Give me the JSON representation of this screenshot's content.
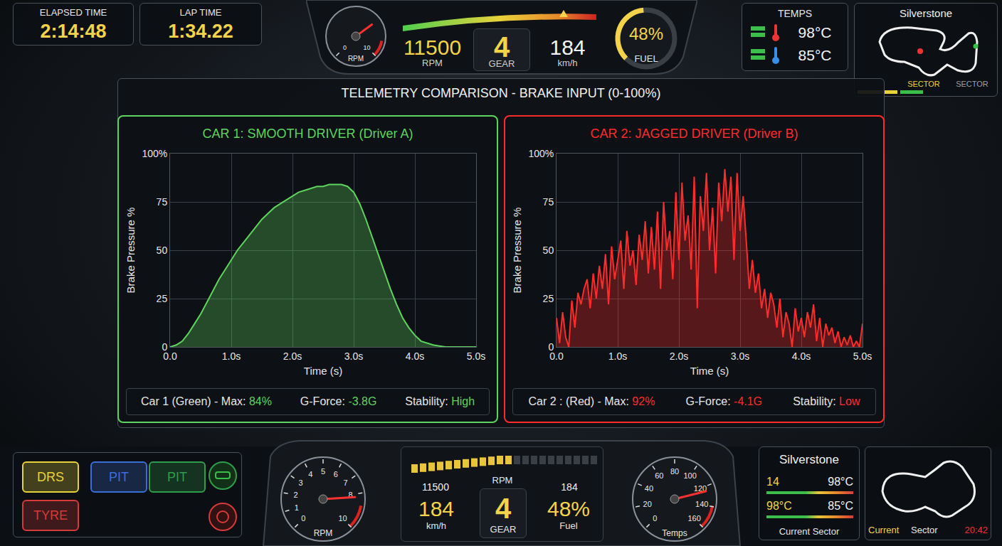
{
  "hud_top": {
    "elapsed": {
      "label": "ELAPSED TIME",
      "value": "2:14:48"
    },
    "lap": {
      "label": "LAP TIME",
      "value": "1:34.22"
    },
    "rpm_gauge": {
      "label": "RPM",
      "ticks": [
        0,
        10
      ],
      "needle": 7
    },
    "rpm": {
      "value": "11500",
      "label": "RPM"
    },
    "gear": {
      "value": "4",
      "label": "GEAR"
    },
    "speed": {
      "value": "184",
      "label": "km/h"
    },
    "fuel": {
      "value": 48,
      "label": "48%",
      "caption": "FUEL",
      "range": [
        0,
        100
      ]
    },
    "temps": {
      "title": "TEMPS",
      "values": [
        "98°C",
        "85°C"
      ]
    },
    "map": {
      "title": "Silverstone",
      "sectors": [
        "SECTOR",
        "SECTOR"
      ]
    }
  },
  "comparison": {
    "title": "TELEMETRY COMPARISON - BRAKE INPUT (0-100%)",
    "panels": [
      {
        "footer": [
          {
            "label": "Car 1 (Green) - Max:",
            "value": "84%"
          },
          {
            "label": "G-Force:",
            "value": "-3.8G"
          },
          {
            "label": "Stability:",
            "value": "High"
          }
        ]
      },
      {
        "footer": [
          {
            "label": "Car 2 : (Red) - Max:",
            "value": "92%"
          },
          {
            "label": "G-Force:",
            "value": "-4.1G"
          },
          {
            "label": "Stability:",
            "value": "Low"
          }
        ]
      }
    ]
  },
  "chart_data": [
    {
      "type": "area",
      "title": "CAR 1: SMOOTH DRIVER (Driver A)",
      "x_label": "Time (s)",
      "y_label": "Brake Pressure %",
      "color": "#5fd35f",
      "x": [
        0,
        0.1,
        0.2,
        0.3,
        0.4,
        0.5,
        0.6,
        0.7,
        0.8,
        0.9,
        1,
        1.1,
        1.2,
        1.3,
        1.4,
        1.5,
        1.6,
        1.7,
        1.8,
        1.9,
        2,
        2.1,
        2.2,
        2.3,
        2.4,
        2.5,
        2.6,
        2.7,
        2.8,
        2.9,
        3,
        3.1,
        3.2,
        3.3,
        3.4,
        3.5,
        3.6,
        3.7,
        3.8,
        3.9,
        4,
        4.1,
        4.2,
        4.3,
        4.4,
        4.5,
        4.6,
        4.7,
        4.8,
        4.9,
        5
      ],
      "values": [
        0,
        1,
        3,
        7,
        12,
        17,
        23,
        29,
        35,
        40,
        45,
        50,
        54,
        58,
        62,
        66,
        69,
        72,
        74,
        76,
        78,
        80,
        81,
        82,
        83,
        83,
        84,
        84,
        84,
        83,
        80,
        74,
        66,
        57,
        48,
        39,
        30,
        22,
        15,
        10,
        6,
        3,
        2,
        1,
        0.5,
        0,
        0,
        0,
        0,
        0,
        0
      ],
      "xlim": [
        0,
        5
      ],
      "ylim": [
        0,
        100
      ],
      "xticks": [
        {
          "value": 0,
          "label": "0.0"
        },
        {
          "value": 1,
          "label": "1.0s"
        },
        {
          "value": 2,
          "label": "2.0s"
        },
        {
          "value": 3,
          "label": "3.0s"
        },
        {
          "value": 4,
          "label": "4.0s"
        },
        {
          "value": 5,
          "label": "5.0s"
        }
      ],
      "yticks": [
        0,
        25,
        50,
        75,
        {
          "value": 100,
          "label": "100%"
        }
      ],
      "grid": true
    },
    {
      "type": "area",
      "title": "CAR 2: JAGGED DRIVER (Driver B)",
      "x_label": "Time (s)",
      "y_label": "Brake Pressure %",
      "color": "#ff2a2a",
      "x": [
        0,
        0.05,
        0.1,
        0.15,
        0.2,
        0.25,
        0.3,
        0.35,
        0.4,
        0.45,
        0.5,
        0.55,
        0.6,
        0.65,
        0.7,
        0.75,
        0.8,
        0.85,
        0.9,
        0.95,
        1,
        1.05,
        1.1,
        1.15,
        1.2,
        1.25,
        1.3,
        1.35,
        1.4,
        1.45,
        1.5,
        1.55,
        1.6,
        1.65,
        1.7,
        1.75,
        1.8,
        1.85,
        1.9,
        1.95,
        2,
        2.05,
        2.1,
        2.15,
        2.2,
        2.25,
        2.3,
        2.35,
        2.4,
        2.45,
        2.5,
        2.55,
        2.6,
        2.65,
        2.7,
        2.75,
        2.8,
        2.85,
        2.9,
        2.95,
        3,
        3.05,
        3.1,
        3.15,
        3.2,
        3.25,
        3.3,
        3.35,
        3.4,
        3.45,
        3.5,
        3.55,
        3.6,
        3.65,
        3.7,
        3.75,
        3.8,
        3.85,
        3.9,
        3.95,
        4,
        4.05,
        4.1,
        4.15,
        4.2,
        4.25,
        4.3,
        4.35,
        4.4,
        4.45,
        4.5,
        4.55,
        4.6,
        4.65,
        4.7,
        4.75,
        4.8,
        4.85,
        4.9,
        4.95,
        5
      ],
      "values": [
        15,
        2,
        18,
        5,
        0,
        24,
        10,
        28,
        22,
        30,
        35,
        20,
        38,
        25,
        42,
        30,
        48,
        22,
        52,
        35,
        45,
        55,
        30,
        60,
        42,
        50,
        32,
        58,
        45,
        65,
        38,
        62,
        40,
        70,
        30,
        75,
        50,
        60,
        35,
        80,
        45,
        85,
        55,
        68,
        40,
        88,
        20,
        78,
        60,
        90,
        50,
        72,
        38,
        85,
        65,
        92,
        70,
        88,
        45,
        90,
        60,
        78,
        55,
        30,
        45,
        28,
        38,
        20,
        30,
        15,
        28,
        22,
        10,
        25,
        5,
        18,
        12,
        0,
        20,
        8,
        15,
        5,
        18,
        10,
        22,
        3,
        15,
        0,
        12,
        6,
        10,
        2,
        8,
        0,
        5,
        1,
        6,
        0,
        3,
        0,
        12
      ],
      "xlim": [
        0,
        5
      ],
      "ylim": [
        0,
        100
      ],
      "xticks": [
        {
          "value": 0,
          "label": "0.0"
        },
        {
          "value": 1,
          "label": "1.0s"
        },
        {
          "value": 2,
          "label": "2.0s"
        },
        {
          "value": 3,
          "label": "3.0s"
        },
        {
          "value": 4,
          "label": "4.0s"
        },
        {
          "value": 5,
          "label": "5.0s"
        }
      ],
      "yticks": [
        0,
        25,
        50,
        75,
        {
          "value": 100,
          "label": "100%"
        }
      ],
      "grid": true
    }
  ],
  "hud_bottom": {
    "buttons": [
      {
        "label": "DRS",
        "color": "#e8d23a"
      },
      {
        "label": "PIT",
        "color": "#3a6fd8"
      },
      {
        "label": "PIT",
        "color": "#2f9e4a"
      },
      {
        "label": "TYRE",
        "color": "#d63a3a"
      }
    ],
    "rpm_gauge": {
      "label": "RPM",
      "ticks": [
        0,
        1,
        2,
        3,
        4,
        5,
        6,
        7,
        8,
        10
      ],
      "needle": 8.2
    },
    "center": {
      "rpm": "11500",
      "rpm_label": "RPM",
      "speed": "184",
      "speed_label": "km/h",
      "gear": "4",
      "gear_label": "GEAR",
      "fuel": "48%",
      "fuel_label": "Fuel",
      "speed_top": "184"
    },
    "temp_gauge": {
      "label": "Temps",
      "ticks": [
        0,
        20,
        40,
        60,
        80,
        100,
        120,
        140,
        160
      ],
      "needle": 125
    },
    "track_box": {
      "title": "Silverstone",
      "rows": [
        [
          "14",
          "98°C"
        ],
        [
          "98°C",
          "85°C"
        ]
      ],
      "caption": "Current Sector"
    },
    "map": {
      "labels": [
        "Current",
        "Sector"
      ],
      "time": "20:42"
    }
  }
}
